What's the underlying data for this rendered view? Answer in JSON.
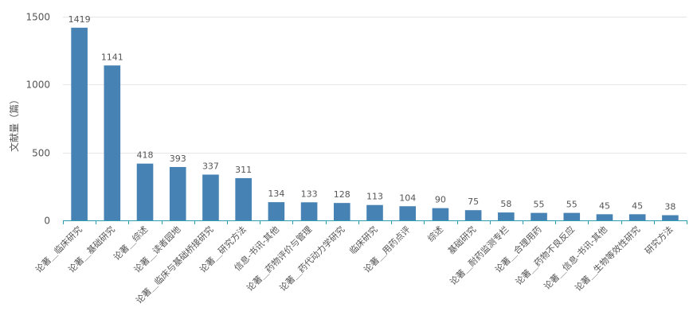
{
  "chart_data": {
    "type": "bar",
    "title": "",
    "xlabel": "",
    "ylabel": "文献量（篇）",
    "ylim": [
      0,
      1500
    ],
    "yticks": [
      0,
      500,
      1000,
      1500
    ],
    "grid": true,
    "legend": "none",
    "bar_color": "#4682b4",
    "axis_color": "#2d9cae",
    "categories": [
      "论著＿临床研究",
      "论著＿基础研究",
      "论著＿综述",
      "论著＿读者园地",
      "论著＿临床与基础桥接研究",
      "论著＿研究方法",
      "信息-书讯-其他",
      "论著＿药物评价与管理",
      "论著＿药代动力学研究",
      "临床研究",
      "论著＿用药点评",
      "综述",
      "基础研究",
      "论著＿耐药监测专栏",
      "论著＿合理用药",
      "论著＿药物不良反应",
      "论著＿信息-书讯-其他",
      "论著＿生物等效性研究",
      "研究方法"
    ],
    "values": [
      1419,
      1141,
      418,
      393,
      337,
      311,
      134,
      133,
      128,
      113,
      104,
      90,
      75,
      58,
      55,
      55,
      45,
      45,
      38
    ]
  }
}
